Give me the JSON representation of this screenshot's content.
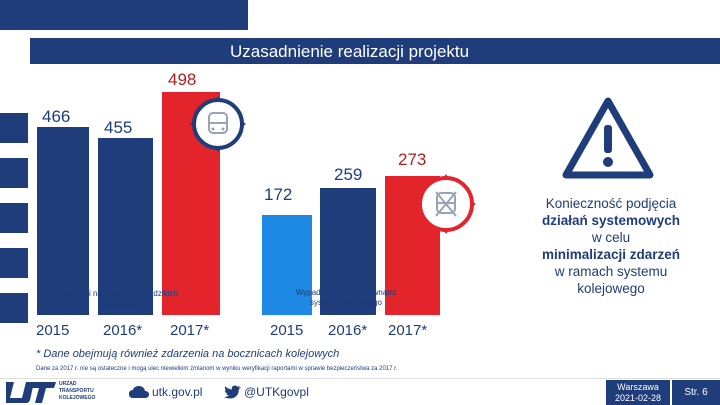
{
  "header": {
    "title": "Uzasadnienie realizacji projektu"
  },
  "chart_data": [
    {
      "type": "bar",
      "categories": [
        "2015",
        "2016*",
        "2017*"
      ],
      "values": [
        466,
        455,
        498
      ],
      "caption": "Wypadki na przejazdach i dzikich przejściach",
      "colors": [
        "#1f3d7a",
        "#1f3d7a",
        "#e3242b"
      ]
    },
    {
      "type": "bar",
      "categories": [
        "2015",
        "2016*",
        "2017*"
      ],
      "values": [
        172,
        259,
        273
      ],
      "caption": "Wypadki powstałe wewnątrz systemu kolejowego",
      "colors": [
        "#1e88e5",
        "#1f3d7a",
        "#e3242b"
      ]
    }
  ],
  "right_panel": {
    "line1": "Konieczność podjęcia",
    "line2": "działań systemowych",
    "line3": "w celu",
    "line4": "minimalizacji zdarzeń",
    "line5": "w ramach systemu",
    "line6": "kolejowego"
  },
  "notes": {
    "main": "* Dane obejmują również zdarzenia na bocznicach kolejowych",
    "sub": "Dane za 2017 r. nie są ostateczne i mogą ulec niewielkim zmianom w wyniku weryfikacji raportami w sprawie bezpieczeństwa za 2017 r."
  },
  "footer": {
    "logo_text": "UTK",
    "logo_sub1": "URZĄD",
    "logo_sub2": "TRANSPORTU",
    "logo_sub3": "KOLEJOWEGO",
    "website": "utk.gov.pl",
    "twitter": "@UTKgovpl",
    "city": "Warszawa",
    "date": "2021-02-28",
    "page": "Str. 6"
  },
  "icons": [
    "train-icon",
    "warning-icon",
    "twitter-icon",
    "cloud-icon"
  ]
}
